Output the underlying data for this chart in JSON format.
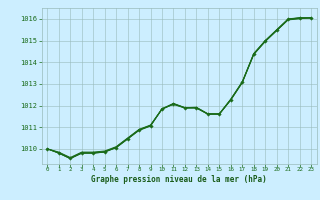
{
  "title": "Graphe pression niveau de la mer (hPa)",
  "hours": [
    0,
    1,
    2,
    3,
    4,
    5,
    6,
    7,
    8,
    9,
    10,
    11,
    12,
    13,
    14,
    15,
    16,
    17,
    18,
    19,
    20,
    21,
    22,
    23
  ],
  "line1": [
    1010.0,
    1009.8,
    1009.55,
    1009.8,
    1009.8,
    1009.85,
    1010.05,
    1010.45,
    1010.85,
    1011.05,
    1011.85,
    1012.1,
    1011.9,
    1011.9,
    1011.6,
    1011.6,
    1012.25,
    1013.05,
    1014.35,
    1014.95,
    1015.45,
    1015.95,
    1016.0,
    1016.05
  ],
  "line2": [
    1010.0,
    1009.85,
    1009.6,
    1009.85,
    1009.85,
    1009.9,
    1010.1,
    1010.5,
    1010.9,
    1011.1,
    1011.85,
    1012.05,
    1011.88,
    1011.88,
    1011.6,
    1011.6,
    1012.28,
    1013.08,
    1014.38,
    1014.98,
    1015.48,
    1015.98,
    1016.05,
    1016.05
  ],
  "line3": [
    1010.0,
    1009.8,
    1009.55,
    1009.8,
    1009.8,
    1009.85,
    1010.08,
    1010.48,
    1010.88,
    1011.08,
    1011.82,
    1012.08,
    1011.9,
    1011.92,
    1011.62,
    1011.62,
    1012.3,
    1013.1,
    1014.4,
    1015.0,
    1015.5,
    1016.0,
    1016.05,
    1016.05
  ],
  "line_main": [
    1010.0,
    1009.82,
    1009.57,
    1009.82,
    1009.82,
    1009.87,
    1010.06,
    1010.46,
    1010.87,
    1011.07,
    1011.84,
    1012.07,
    1011.89,
    1011.9,
    1011.61,
    1011.61,
    1012.27,
    1013.07,
    1014.37,
    1014.97,
    1015.47,
    1015.97,
    1016.03,
    1016.03
  ],
  "background_color": "#cceeff",
  "grid_color": "#99bbbb",
  "line_color": "#1a6b1a",
  "marker_color": "#1a6b1a",
  "text_color": "#1a6b1a",
  "label_color": "#1a5c1a",
  "ylim_min": 1009.3,
  "ylim_max": 1016.5,
  "yticks": [
    1010,
    1011,
    1012,
    1013,
    1014,
    1015,
    1016
  ],
  "fig_bg": "#cceeff"
}
